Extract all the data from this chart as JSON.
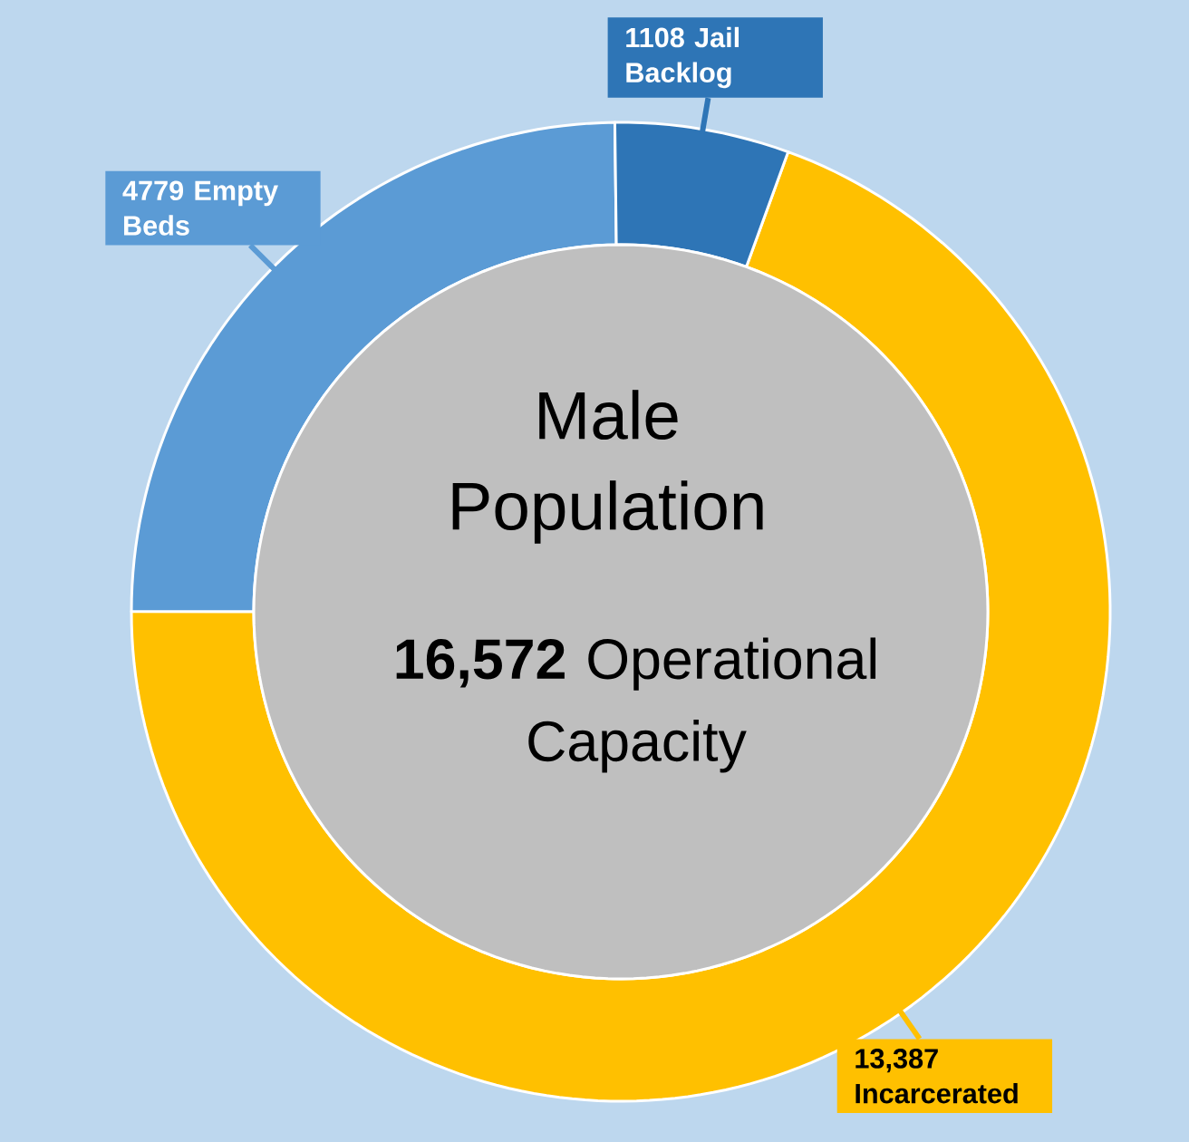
{
  "chart_data": {
    "type": "donut",
    "title": "Male Population",
    "categories": [
      "Incarcerated",
      "Empty Beds",
      "Jail Backlog"
    ],
    "values": [
      13387,
      4779,
      1108
    ],
    "value_labels": [
      "13,387",
      "4779",
      "1108"
    ],
    "colors": [
      "#ffc000",
      "#5b9bd5",
      "#2e75b6"
    ],
    "annotations": [
      "**16,572** Operational Capacity"
    ]
  }
}
